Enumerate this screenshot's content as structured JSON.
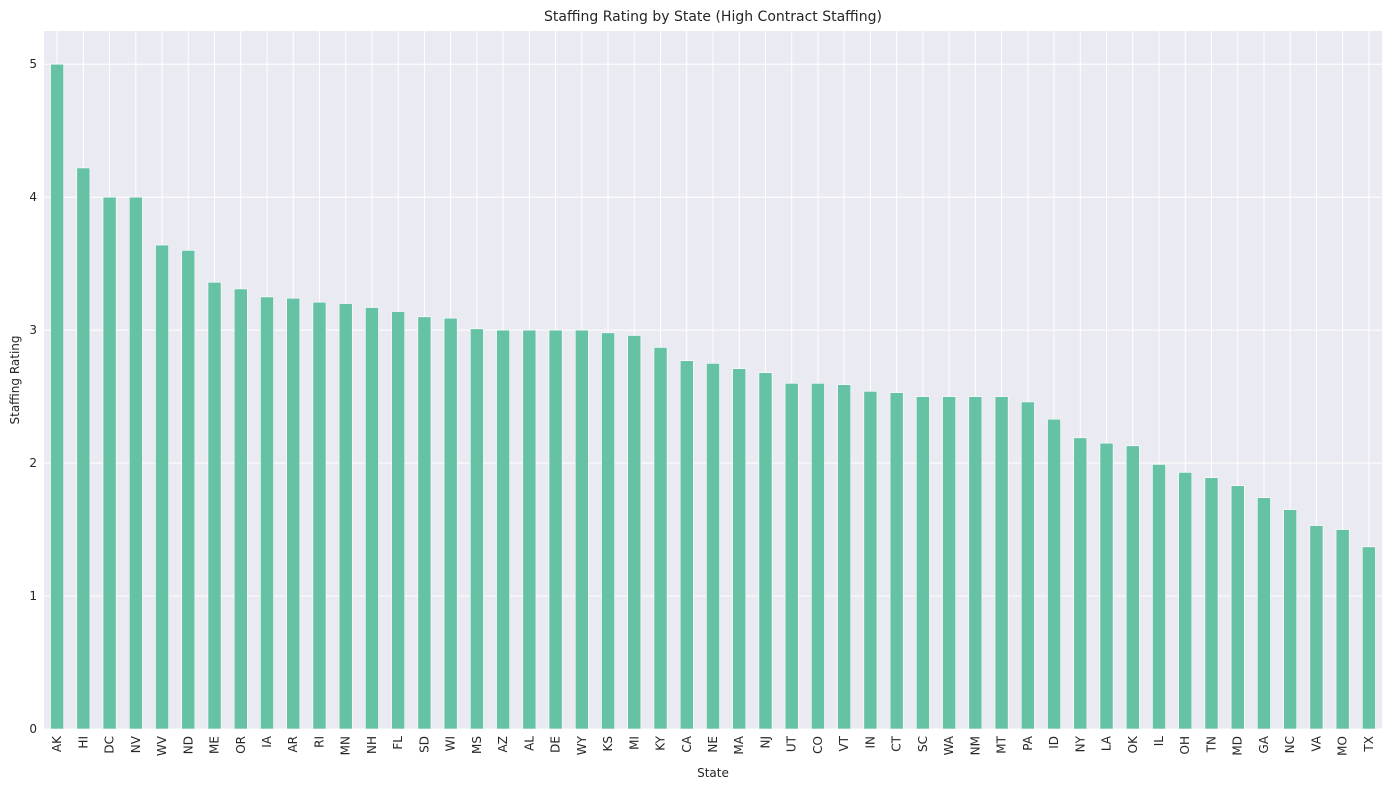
{
  "chart_data": {
    "type": "bar",
    "title": "Staffing Rating by State (High Contract Staffing)",
    "xlabel": "State",
    "ylabel": "Staffing Rating",
    "ylim": [
      0,
      5.25
    ],
    "yticks": [
      0,
      1,
      2,
      3,
      4,
      5
    ],
    "grid": true,
    "legend": "none",
    "colors": {
      "bar": "#66c2a5",
      "plot_background": "#eaeaf2",
      "grid": "#ffffff",
      "text": "#262626"
    },
    "categories": [
      "AK",
      "HI",
      "DC",
      "NV",
      "WV",
      "ND",
      "ME",
      "OR",
      "IA",
      "AR",
      "RI",
      "MN",
      "NH",
      "FL",
      "SD",
      "WI",
      "MS",
      "AZ",
      "AL",
      "DE",
      "WY",
      "KS",
      "MI",
      "KY",
      "CA",
      "NE",
      "MA",
      "NJ",
      "UT",
      "CO",
      "VT",
      "IN",
      "CT",
      "SC",
      "WA",
      "NM",
      "MT",
      "PA",
      "ID",
      "NY",
      "LA",
      "OK",
      "IL",
      "OH",
      "TN",
      "MD",
      "GA",
      "NC",
      "VA",
      "MO",
      "TX"
    ],
    "values": [
      5.0,
      4.22,
      4.0,
      4.0,
      3.64,
      3.6,
      3.36,
      3.31,
      3.25,
      3.24,
      3.21,
      3.2,
      3.17,
      3.14,
      3.1,
      3.09,
      3.01,
      3.0,
      3.0,
      3.0,
      3.0,
      2.98,
      2.96,
      2.87,
      2.77,
      2.75,
      2.71,
      2.68,
      2.6,
      2.6,
      2.59,
      2.54,
      2.53,
      2.5,
      2.5,
      2.5,
      2.5,
      2.46,
      2.33,
      2.19,
      2.15,
      2.13,
      1.99,
      1.93,
      1.89,
      1.83,
      1.74,
      1.65,
      1.53,
      1.5,
      1.37
    ]
  }
}
